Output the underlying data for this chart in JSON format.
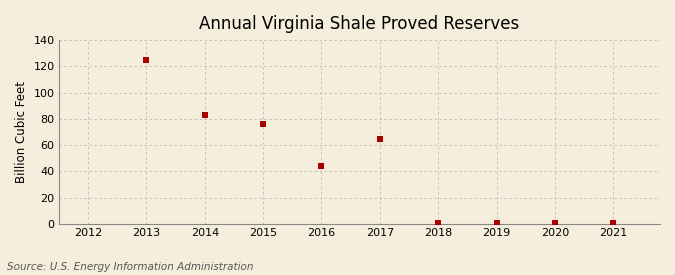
{
  "title": "Annual Virginia Shale Proved Reserves",
  "ylabel": "Billion Cubic Feet",
  "source": "Source: U.S. Energy Information Administration",
  "x": [
    2013,
    2014,
    2015,
    2016,
    2017,
    2018,
    2019,
    2020,
    2021
  ],
  "y": [
    125,
    83,
    76,
    44,
    65,
    0.8,
    0.8,
    0.8,
    0.8
  ],
  "marker_color": "#aa0000",
  "marker_size": 5,
  "xlim": [
    2011.5,
    2021.8
  ],
  "ylim": [
    0,
    140
  ],
  "yticks": [
    0,
    20,
    40,
    60,
    80,
    100,
    120,
    140
  ],
  "xticks": [
    2012,
    2013,
    2014,
    2015,
    2016,
    2017,
    2018,
    2019,
    2020,
    2021
  ],
  "bg_color": "#f5eedc",
  "grid_color": "#bbbbbb",
  "title_fontsize": 12,
  "label_fontsize": 8.5,
  "tick_fontsize": 8,
  "source_fontsize": 7.5
}
